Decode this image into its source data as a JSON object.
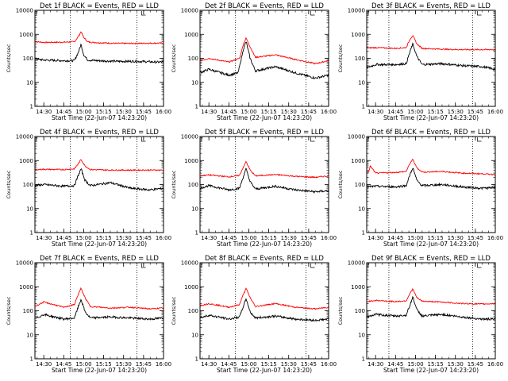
{
  "figure": {
    "background": "#ffffff",
    "series_colors": {
      "events": "#000000",
      "lld": "#ff0000"
    }
  },
  "shared_axes": {
    "ylabel": "Counts/sec",
    "xlabel": "Start Time (22-Jun-07 14:23:20)",
    "x_tick_labels": [
      "14:30",
      "14:45",
      "15:00",
      "15:15",
      "15:30",
      "15:45",
      "16:00"
    ],
    "y_tick_labels": [
      "1",
      "10",
      "100",
      "1000",
      "10000"
    ]
  },
  "chart_data": [
    {
      "type": "line",
      "title": "Det 1f BLACK = Events, RED = LLD",
      "xlabel": "Start Time (22-Jun-07 14:23:20)",
      "ylabel": "Counts/sec",
      "x_range": [
        "14:23:20",
        "16:00"
      ],
      "ylim": [
        1,
        10000
      ],
      "yscale": "log",
      "x_ticks": [
        "14:30",
        "14:45",
        "15:00",
        "15:15",
        "15:30",
        "15:45",
        "16:00"
      ],
      "y_ticks": [
        1,
        10,
        100,
        1000,
        10000
      ],
      "vlines": [
        "14:50",
        "15:40"
      ],
      "series": [
        {
          "color": "#ff0000",
          "x": [
            "14:23",
            "14:30",
            "14:45",
            "14:53",
            "14:56",
            "14:58",
            "15:00",
            "15:03",
            "15:10",
            "15:25",
            "15:40",
            "15:55",
            "16:00"
          ],
          "y": [
            500,
            460,
            470,
            490,
            800,
            1300,
            750,
            480,
            450,
            420,
            420,
            430,
            430
          ]
        },
        {
          "color": "#000000",
          "x": [
            "14:23",
            "14:30",
            "14:45",
            "14:53",
            "14:56",
            "14:58",
            "15:00",
            "15:03",
            "15:10",
            "15:25",
            "15:40",
            "15:55",
            "16:00"
          ],
          "y": [
            95,
            85,
            80,
            80,
            180,
            380,
            140,
            85,
            80,
            75,
            75,
            70,
            70
          ]
        }
      ]
    },
    {
      "type": "line",
      "title": "Det 2f BLACK = Events, RED = LLD",
      "xlabel": "Start Time (22-Jun-07 14:23:20)",
      "ylabel": "Counts/sec",
      "x_range": [
        "14:23:20",
        "16:00"
      ],
      "ylim": [
        1,
        10000
      ],
      "yscale": "log",
      "x_ticks": [
        "14:30",
        "14:45",
        "15:00",
        "15:15",
        "15:30",
        "15:45",
        "16:00"
      ],
      "y_ticks": [
        1,
        10,
        100,
        1000,
        10000
      ],
      "vlines": [
        "14:50",
        "15:43"
      ],
      "series": [
        {
          "color": "#ff0000",
          "x": [
            "14:23",
            "14:30",
            "14:45",
            "14:53",
            "14:56",
            "14:58",
            "15:01",
            "15:05",
            "15:20",
            "15:35",
            "15:50",
            "16:00"
          ],
          "y": [
            80,
            100,
            70,
            100,
            400,
            700,
            300,
            110,
            140,
            90,
            60,
            80
          ]
        },
        {
          "color": "#000000",
          "x": [
            "14:23",
            "14:30",
            "14:45",
            "14:52",
            "14:56",
            "14:58",
            "15:01",
            "15:05",
            "15:20",
            "15:35",
            "15:50",
            "16:00"
          ],
          "y": [
            25,
            35,
            20,
            25,
            250,
            500,
            100,
            30,
            45,
            25,
            15,
            20
          ]
        }
      ]
    },
    {
      "type": "line",
      "title": "Det 3f BLACK = Events, RED = LLD",
      "xlabel": "Start Time (22-Jun-07 14:23:20)",
      "ylabel": "Counts/sec",
      "x_range": [
        "14:23:20",
        "16:00"
      ],
      "ylim": [
        1,
        10000
      ],
      "yscale": "log",
      "x_ticks": [
        "14:30",
        "14:45",
        "15:00",
        "15:15",
        "15:30",
        "15:45",
        "16:00"
      ],
      "y_ticks": [
        1,
        10,
        100,
        1000,
        10000
      ],
      "vlines": [
        "14:40",
        "15:43"
      ],
      "series": [
        {
          "color": "#ff0000",
          "x": [
            "14:23",
            "14:30",
            "14:45",
            "14:53",
            "14:56",
            "14:58",
            "15:01",
            "15:05",
            "15:20",
            "15:35",
            "15:50",
            "16:00"
          ],
          "y": [
            270,
            280,
            260,
            280,
            650,
            900,
            400,
            260,
            240,
            230,
            230,
            230
          ]
        },
        {
          "color": "#000000",
          "x": [
            "14:23",
            "14:30",
            "14:45",
            "14:53",
            "14:56",
            "14:58",
            "15:01",
            "15:05",
            "15:20",
            "15:35",
            "15:50",
            "16:00"
          ],
          "y": [
            40,
            55,
            55,
            60,
            200,
            400,
            120,
            55,
            60,
            50,
            45,
            35
          ]
        }
      ]
    },
    {
      "type": "line",
      "title": "Det 4f BLACK = Events, RED = LLD",
      "xlabel": "Start Time (22-Jun-07 14:23:20)",
      "ylabel": "Counts/sec",
      "x_range": [
        "14:23:20",
        "16:00"
      ],
      "ylim": [
        1,
        10000
      ],
      "yscale": "log",
      "x_ticks": [
        "14:30",
        "14:45",
        "15:00",
        "15:15",
        "15:30",
        "15:45",
        "16:00"
      ],
      "y_ticks": [
        1,
        10,
        100,
        1000,
        10000
      ],
      "vlines": [
        "14:50",
        "15:40"
      ],
      "series": [
        {
          "color": "#ff0000",
          "x": [
            "14:23",
            "14:30",
            "14:45",
            "14:53",
            "14:56",
            "14:58",
            "15:01",
            "15:05",
            "15:20",
            "15:35",
            "15:50",
            "16:00"
          ],
          "y": [
            420,
            430,
            420,
            450,
            750,
            1100,
            600,
            420,
            400,
            400,
            400,
            400
          ]
        },
        {
          "color": "#000000",
          "x": [
            "14:23",
            "14:30",
            "14:45",
            "14:53",
            "14:56",
            "14:58",
            "15:01",
            "15:05",
            "15:20",
            "15:35",
            "15:50",
            "16:00"
          ],
          "y": [
            90,
            100,
            85,
            90,
            250,
            450,
            150,
            90,
            120,
            70,
            60,
            70
          ]
        }
      ]
    },
    {
      "type": "line",
      "title": "Det 5f BLACK = Events, RED = LLD",
      "xlabel": "Start Time (22-Jun-07 14:23:20)",
      "ylabel": "Counts/sec",
      "x_range": [
        "14:23:20",
        "16:00"
      ],
      "ylim": [
        1,
        10000
      ],
      "yscale": "log",
      "x_ticks": [
        "14:30",
        "14:45",
        "15:00",
        "15:15",
        "15:30",
        "15:45",
        "16:00"
      ],
      "y_ticks": [
        1,
        10,
        100,
        1000,
        10000
      ],
      "vlines": [
        "14:50",
        "15:43"
      ],
      "series": [
        {
          "color": "#ff0000",
          "x": [
            "14:23",
            "14:30",
            "14:45",
            "14:53",
            "14:56",
            "14:58",
            "15:01",
            "15:05",
            "15:20",
            "15:35",
            "15:50",
            "16:00"
          ],
          "y": [
            230,
            250,
            210,
            240,
            550,
            900,
            400,
            230,
            260,
            220,
            200,
            230
          ]
        },
        {
          "color": "#000000",
          "x": [
            "14:23",
            "14:30",
            "14:45",
            "14:53",
            "14:56",
            "14:58",
            "15:01",
            "15:05",
            "15:20",
            "15:35",
            "15:50",
            "16:00"
          ],
          "y": [
            70,
            90,
            60,
            70,
            220,
            450,
            130,
            65,
            85,
            60,
            50,
            55
          ]
        }
      ]
    },
    {
      "type": "line",
      "title": "Det 6f BLACK = Events, RED = LLD",
      "xlabel": "Start Time (22-Jun-07 14:23:20)",
      "ylabel": "Counts/sec",
      "x_range": [
        "14:23:20",
        "16:00"
      ],
      "ylim": [
        1,
        10000
      ],
      "yscale": "log",
      "x_ticks": [
        "14:30",
        "14:45",
        "15:00",
        "15:15",
        "15:30",
        "15:45",
        "16:00"
      ],
      "y_ticks": [
        1,
        10,
        100,
        1000,
        10000
      ],
      "vlines": [
        "14:40",
        "15:43"
      ],
      "series": [
        {
          "color": "#ff0000",
          "x": [
            "14:23",
            "14:25",
            "14:26",
            "14:30",
            "14:45",
            "14:53",
            "14:56",
            "14:58",
            "15:01",
            "15:05",
            "15:20",
            "15:35",
            "15:50",
            "16:00"
          ],
          "y": [
            300,
            350,
            600,
            300,
            320,
            350,
            800,
            1100,
            500,
            330,
            350,
            300,
            280,
            260
          ]
        },
        {
          "color": "#000000",
          "x": [
            "14:23",
            "14:30",
            "14:45",
            "14:53",
            "14:56",
            "14:58",
            "15:01",
            "15:05",
            "15:20",
            "15:35",
            "15:50",
            "16:00"
          ],
          "y": [
            80,
            85,
            80,
            90,
            270,
            500,
            150,
            90,
            100,
            80,
            70,
            75
          ]
        }
      ]
    },
    {
      "type": "line",
      "title": "Det 7f BLACK = Events, RED = LLD",
      "xlabel": "Start Time (22-Jun-07 14:23:20)",
      "ylabel": "Counts/sec",
      "x_range": [
        "14:23:20",
        "16:00"
      ],
      "ylim": [
        1,
        10000
      ],
      "yscale": "log",
      "x_ticks": [
        "14:30",
        "14:45",
        "15:00",
        "15:15",
        "15:30",
        "15:45",
        "16:00"
      ],
      "y_ticks": [
        1,
        10,
        100,
        1000,
        10000
      ],
      "vlines": [
        "14:50",
        "15:40"
      ],
      "series": [
        {
          "color": "#ff0000",
          "x": [
            "14:23",
            "14:30",
            "14:45",
            "14:53",
            "14:56",
            "14:58",
            "15:01",
            "15:05",
            "15:20",
            "15:35",
            "15:50",
            "16:00"
          ],
          "y": [
            150,
            230,
            140,
            180,
            500,
            850,
            350,
            150,
            130,
            140,
            120,
            130
          ]
        },
        {
          "color": "#000000",
          "x": [
            "14:23",
            "14:30",
            "14:45",
            "14:53",
            "14:56",
            "14:58",
            "15:01",
            "15:05",
            "15:20",
            "15:35",
            "15:50",
            "16:00"
          ],
          "y": [
            45,
            70,
            45,
            50,
            150,
            300,
            90,
            50,
            55,
            50,
            45,
            50
          ]
        }
      ]
    },
    {
      "type": "line",
      "title": "Det 8f BLACK = Events, RED = LLD",
      "xlabel": "Start Time (22-Jun-07 14:23:20)",
      "ylabel": "Counts/sec",
      "x_range": [
        "14:23:20",
        "16:00"
      ],
      "ylim": [
        1,
        10000
      ],
      "yscale": "log",
      "x_ticks": [
        "14:30",
        "14:45",
        "15:00",
        "15:15",
        "15:30",
        "15:45",
        "16:00"
      ],
      "y_ticks": [
        1,
        10,
        100,
        1000,
        10000
      ],
      "vlines": [
        "14:50",
        "15:43"
      ],
      "series": [
        {
          "color": "#ff0000",
          "x": [
            "14:23",
            "14:30",
            "14:45",
            "14:53",
            "14:56",
            "14:58",
            "15:01",
            "15:05",
            "15:20",
            "15:35",
            "15:50",
            "16:00"
          ],
          "y": [
            160,
            200,
            140,
            180,
            500,
            850,
            350,
            150,
            200,
            140,
            120,
            140
          ]
        },
        {
          "color": "#000000",
          "x": [
            "14:23",
            "14:30",
            "14:45",
            "14:53",
            "14:56",
            "14:58",
            "15:01",
            "15:05",
            "15:20",
            "15:35",
            "15:50",
            "16:00"
          ],
          "y": [
            50,
            65,
            45,
            55,
            160,
            320,
            90,
            50,
            60,
            45,
            40,
            45
          ]
        }
      ]
    },
    {
      "type": "line",
      "title": "Det 9f BLACK = Events, RED = LLD",
      "xlabel": "Start Time (22-Jun-07 14:23:20)",
      "ylabel": "Counts/sec",
      "x_range": [
        "14:23:20",
        "16:00"
      ],
      "ylim": [
        1,
        10000
      ],
      "yscale": "log",
      "x_ticks": [
        "14:30",
        "14:45",
        "15:00",
        "15:15",
        "15:30",
        "15:45",
        "16:00"
      ],
      "y_ticks": [
        1,
        10,
        100,
        1000,
        10000
      ],
      "vlines": [
        "14:40",
        "15:43"
      ],
      "series": [
        {
          "color": "#ff0000",
          "x": [
            "14:23",
            "14:30",
            "14:45",
            "14:53",
            "14:56",
            "14:58",
            "15:01",
            "15:05",
            "15:20",
            "15:35",
            "15:50",
            "16:00"
          ],
          "y": [
            240,
            270,
            240,
            260,
            550,
            800,
            350,
            250,
            230,
            200,
            190,
            200
          ]
        },
        {
          "color": "#000000",
          "x": [
            "14:23",
            "14:30",
            "14:45",
            "14:53",
            "14:56",
            "14:58",
            "15:01",
            "15:05",
            "15:20",
            "15:35",
            "15:50",
            "16:00"
          ],
          "y": [
            55,
            70,
            60,
            65,
            180,
            380,
            110,
            60,
            70,
            55,
            45,
            45
          ]
        }
      ]
    }
  ]
}
